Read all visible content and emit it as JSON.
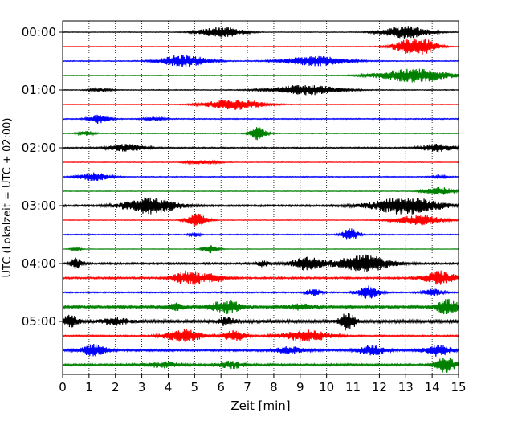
{
  "chart_data": {
    "type": "line",
    "title": "",
    "xlabel": "Zeit  [min]",
    "ylabel": "UTC (Lokalzeit = UTC + 02:00)",
    "xlim": [
      0,
      15
    ],
    "x_ticks": [
      "0",
      "1",
      "2",
      "3",
      "4",
      "5",
      "6",
      "7",
      "8",
      "9",
      "10",
      "11",
      "12",
      "13",
      "14",
      "15"
    ],
    "y_ticks": [
      "00:00",
      "01:00",
      "02:00",
      "03:00",
      "04:00",
      "05:00"
    ],
    "grid": "vertical-dotted",
    "trace_colors": [
      "#000000",
      "#ff0000",
      "#0000ff",
      "#008000"
    ],
    "traces": [
      {
        "row": 0,
        "events": [
          [
            6,
            0.8,
            1.0
          ],
          [
            13,
            0.9,
            1.1
          ]
        ],
        "base": 0.05
      },
      {
        "row": 1,
        "events": [
          [
            13.2,
            0.7,
            1.3
          ],
          [
            13.8,
            0.5,
            0.7
          ]
        ],
        "base": 0.05
      },
      {
        "row": 2,
        "events": [
          [
            4.6,
            0.9,
            1.1
          ],
          [
            9.6,
            1.2,
            0.9
          ]
        ],
        "base": 0.07
      },
      {
        "row": 3,
        "events": [
          [
            13.3,
            1.4,
            1.2
          ]
        ],
        "base": 0.05
      },
      {
        "row": 4,
        "events": [
          [
            9.2,
            1.3,
            0.9
          ],
          [
            1.4,
            0.4,
            0.3
          ]
        ],
        "base": 0.06
      },
      {
        "row": 5,
        "events": [
          [
            6.5,
            1.1,
            1.0
          ]
        ],
        "base": 0.04
      },
      {
        "row": 6,
        "events": [
          [
            1.4,
            0.4,
            0.8
          ],
          [
            3.5,
            0.4,
            0.3
          ]
        ],
        "base": 0.08
      },
      {
        "row": 7,
        "events": [
          [
            7.4,
            0.3,
            1.2
          ],
          [
            0.9,
            0.3,
            0.4
          ]
        ],
        "base": 0.06
      },
      {
        "row": 8,
        "events": [
          [
            2.4,
            0.7,
            0.6
          ],
          [
            14.2,
            0.6,
            0.7
          ]
        ],
        "base": 0.1
      },
      {
        "row": 9,
        "events": [
          [
            5.3,
            0.6,
            0.4
          ]
        ],
        "base": 0.05
      },
      {
        "row": 10,
        "events": [
          [
            1.2,
            0.6,
            0.7
          ],
          [
            14.3,
            0.3,
            0.2
          ]
        ],
        "base": 0.07
      },
      {
        "row": 11,
        "events": [
          [
            14.3,
            0.6,
            0.7
          ]
        ],
        "base": 0.05
      },
      {
        "row": 12,
        "events": [
          [
            3.3,
            1.0,
            1.4
          ],
          [
            13,
            1.3,
            1.5
          ]
        ],
        "base": 0.14
      },
      {
        "row": 13,
        "events": [
          [
            5.1,
            0.4,
            1.2
          ],
          [
            13.5,
            0.9,
            0.9
          ]
        ],
        "base": 0.05
      },
      {
        "row": 14,
        "events": [
          [
            10.9,
            0.3,
            1.1
          ],
          [
            5.0,
            0.2,
            0.4
          ]
        ],
        "base": 0.08
      },
      {
        "row": 15,
        "events": [
          [
            5.6,
            0.3,
            0.7
          ],
          [
            0.5,
            0.2,
            0.3
          ]
        ],
        "base": 0.04
      },
      {
        "row": 16,
        "events": [
          [
            0.5,
            0.2,
            1.0
          ],
          [
            9.3,
            0.6,
            1.2
          ],
          [
            11.4,
            1.0,
            1.5
          ],
          [
            7.6,
            0.2,
            0.6
          ]
        ],
        "base": 0.15
      },
      {
        "row": 17,
        "events": [
          [
            4.8,
            0.6,
            1.3
          ],
          [
            5.8,
            0.4,
            0.6
          ],
          [
            14.3,
            0.6,
            1.2
          ]
        ],
        "base": 0.14
      },
      {
        "row": 18,
        "events": [
          [
            11.6,
            0.4,
            1.2
          ],
          [
            9.5,
            0.3,
            0.6
          ],
          [
            14,
            0.4,
            0.6
          ]
        ],
        "base": 0.1
      },
      {
        "row": 19,
        "events": [
          [
            6.2,
            0.6,
            1.1
          ],
          [
            14.6,
            0.4,
            1.4
          ],
          [
            4.3,
            0.3,
            0.6
          ],
          [
            9.0,
            0.5,
            0.5
          ]
        ],
        "base": 0.22
      },
      {
        "row": 20,
        "events": [
          [
            10.8,
            0.3,
            1.6
          ],
          [
            6.2,
            0.3,
            0.8
          ],
          [
            0.3,
            0.3,
            1.0
          ],
          [
            2.0,
            0.5,
            0.6
          ]
        ],
        "base": 0.25
      },
      {
        "row": 21,
        "events": [
          [
            4.6,
            0.7,
            1.1
          ],
          [
            6.5,
            0.4,
            1.0
          ],
          [
            9.2,
            0.9,
            1.0
          ]
        ],
        "base": 0.12
      },
      {
        "row": 22,
        "events": [
          [
            1.2,
            0.5,
            1.0
          ],
          [
            11.7,
            0.5,
            0.9
          ],
          [
            14.2,
            0.5,
            1.0
          ],
          [
            8.6,
            0.6,
            0.6
          ]
        ],
        "base": 0.16
      },
      {
        "row": 23,
        "events": [
          [
            14.5,
            0.4,
            1.3
          ],
          [
            6.4,
            0.5,
            0.6
          ],
          [
            3.8,
            0.6,
            0.5
          ]
        ],
        "base": 0.16
      }
    ]
  }
}
